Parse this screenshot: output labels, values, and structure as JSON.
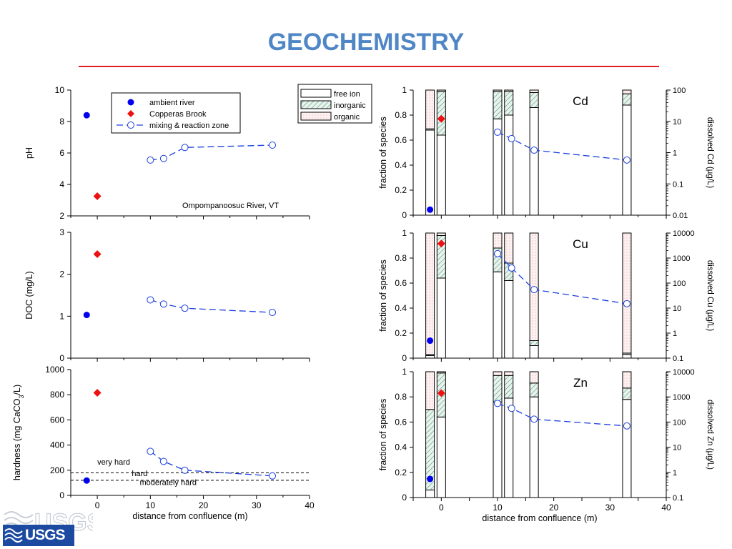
{
  "slide": {
    "title": "GEOCHEMISTRY",
    "accent_color": "#4f86c6",
    "rule_color": "#e02020",
    "logo_text": "USGS",
    "logo_color": "#1b4aa0"
  },
  "styles": {
    "ambient_color": "#0000ee",
    "brook_color": "#ee1111",
    "mixing_color": "#1a3fe0",
    "inorganic_color": "#3f8f6a",
    "organic_color": "#e58f8f"
  },
  "chart_data": [
    {
      "type": "scatter",
      "ylabel": "pH",
      "xlim": [
        -5,
        40
      ],
      "ylim": [
        2,
        10
      ],
      "yticks": [
        2,
        4,
        6,
        8,
        10
      ],
      "xticks": [
        0,
        10,
        20,
        30,
        40
      ],
      "annotation": "Ompompanoosuc River, VT",
      "legend": {
        "position": "top-center",
        "entries": [
          "ambient river",
          "Copperas Brook",
          "mixing & reaction zone"
        ]
      },
      "series": [
        {
          "name": "ambient river",
          "marker": "filled-circle",
          "x": [
            -2
          ],
          "y": [
            8.4
          ]
        },
        {
          "name": "Copperas Brook",
          "marker": "filled-diamond",
          "x": [
            0
          ],
          "y": [
            3.25
          ]
        },
        {
          "name": "mixing & reaction zone",
          "marker": "open-circle",
          "line": "dashed",
          "x": [
            10,
            12.5,
            16.5,
            33
          ],
          "y": [
            5.55,
            5.65,
            6.35,
            6.5
          ]
        }
      ]
    },
    {
      "type": "scatter",
      "ylabel": "DOC (mg/L)",
      "xlim": [
        -5,
        40
      ],
      "ylim": [
        0,
        3
      ],
      "yticks": [
        0,
        1,
        2,
        3
      ],
      "xticks": [
        0,
        10,
        20,
        30,
        40
      ],
      "series": [
        {
          "name": "ambient river",
          "marker": "filled-circle",
          "x": [
            -2
          ],
          "y": [
            1.03
          ]
        },
        {
          "name": "Copperas Brook",
          "marker": "filled-diamond",
          "x": [
            0
          ],
          "y": [
            2.48
          ]
        },
        {
          "name": "mixing & reaction zone",
          "marker": "open-circle",
          "line": "dashed",
          "x": [
            10,
            12.5,
            16.5,
            33
          ],
          "y": [
            1.39,
            1.29,
            1.19,
            1.09
          ]
        }
      ]
    },
    {
      "type": "scatter",
      "ylabel_parts": [
        "hardness (mg CaCO",
        "3",
        "/L)"
      ],
      "xlabel": "distance from confluence (m)",
      "xlim": [
        -5,
        40
      ],
      "ylim": [
        0,
        1000
      ],
      "yticks": [
        0,
        200,
        400,
        600,
        800,
        1000
      ],
      "xticks": [
        0,
        10,
        20,
        30,
        40
      ],
      "reference_lines": [
        {
          "y": 180,
          "style": "dashed"
        },
        {
          "y": 120,
          "style": "dashed"
        }
      ],
      "reference_labels": [
        {
          "text": "very hard",
          "x": 0,
          "y": 245
        },
        {
          "text": "hard",
          "x": 6.5,
          "y": 152
        },
        {
          "text": "moderately hard",
          "x": 8,
          "y": 83
        }
      ],
      "series": [
        {
          "name": "ambient river",
          "marker": "filled-circle",
          "x": [
            -2
          ],
          "y": [
            118
          ]
        },
        {
          "name": "Copperas Brook",
          "marker": "filled-diamond",
          "x": [
            0
          ],
          "y": [
            815
          ]
        },
        {
          "name": "mixing & reaction zone",
          "marker": "open-circle",
          "line": "dashed",
          "x": [
            10,
            12.5,
            16.5,
            33
          ],
          "y": [
            350,
            270,
            200,
            155
          ]
        }
      ]
    },
    {
      "type": "bar",
      "element": "Cd",
      "ylabel": "fraction of species",
      "ylabel_right": "dissolved Cd (µg/L)",
      "xlim": [
        -5,
        40
      ],
      "ylim": [
        0,
        1
      ],
      "yticks": [
        0,
        0.2,
        0.4,
        0.6,
        0.8,
        1
      ],
      "xticks": [
        0,
        10,
        20,
        30,
        40
      ],
      "ylim_right": [
        0.01,
        100
      ],
      "yticks_right": [
        0.01,
        0.1,
        1,
        10,
        100
      ],
      "yticklabels_right": [
        "0.01",
        "0.1",
        "1",
        "10",
        "100"
      ],
      "legend": {
        "position": "top-right-outside",
        "entries": [
          "free ion",
          "inorganic",
          "organic"
        ]
      },
      "bars": [
        {
          "x": -2,
          "free_ion": 0.68,
          "inorganic": 0.01,
          "organic": 0.31
        },
        {
          "x": 0,
          "free_ion": 0.64,
          "inorganic": 0.35,
          "organic": 0.01
        },
        {
          "x": 10,
          "free_ion": 0.77,
          "inorganic": 0.22,
          "organic": 0.01
        },
        {
          "x": 12,
          "free_ion": 0.8,
          "inorganic": 0.19,
          "organic": 0.01
        },
        {
          "x": 16.5,
          "free_ion": 0.86,
          "inorganic": 0.12,
          "organic": 0.02
        },
        {
          "x": 33,
          "free_ion": 0.88,
          "inorganic": 0.09,
          "organic": 0.03
        }
      ],
      "series": [
        {
          "name": "ambient river",
          "marker": "filled-circle",
          "x": [
            -2
          ],
          "y": [
            0.015
          ]
        },
        {
          "name": "Copperas Brook",
          "marker": "filled-diamond",
          "x": [
            0
          ],
          "y": [
            12
          ]
        },
        {
          "name": "mixing & reaction zone",
          "marker": "open-circle",
          "line": "dashed",
          "x": [
            10,
            12.5,
            16.5,
            33
          ],
          "y": [
            4.5,
            2.8,
            1.2,
            0.58
          ]
        }
      ]
    },
    {
      "type": "bar",
      "element": "Cu",
      "ylabel": "fraction of species",
      "ylabel_right": "dissolved Cu (µg/L)",
      "xlim": [
        -5,
        40
      ],
      "ylim": [
        0,
        1
      ],
      "yticks": [
        0,
        0.2,
        0.4,
        0.6,
        0.8,
        1
      ],
      "xticks": [
        0,
        10,
        20,
        30,
        40
      ],
      "ylim_right": [
        0.1,
        10000
      ],
      "yticks_right": [
        0.1,
        1,
        10,
        100,
        1000,
        10000
      ],
      "yticklabels_right": [
        "0.1",
        "1",
        "10",
        "100",
        "1000",
        "10000"
      ],
      "bars": [
        {
          "x": -2,
          "free_ion": 0.02,
          "inorganic": 0.01,
          "organic": 0.97
        },
        {
          "x": 0,
          "free_ion": 0.64,
          "inorganic": 0.34,
          "organic": 0.02
        },
        {
          "x": 10,
          "free_ion": 0.69,
          "inorganic": 0.19,
          "organic": 0.12
        },
        {
          "x": 12,
          "free_ion": 0.62,
          "inorganic": 0.14,
          "organic": 0.24
        },
        {
          "x": 16.5,
          "free_ion": 0.1,
          "inorganic": 0.04,
          "organic": 0.86
        },
        {
          "x": 33,
          "free_ion": 0.03,
          "inorganic": 0.01,
          "organic": 0.96
        }
      ],
      "series": [
        {
          "name": "ambient river",
          "marker": "filled-circle",
          "x": [
            -2
          ],
          "y": [
            0.5
          ]
        },
        {
          "name": "Copperas Brook",
          "marker": "filled-diamond",
          "x": [
            0
          ],
          "y": [
            3800
          ]
        },
        {
          "name": "mixing & reaction zone",
          "marker": "open-circle",
          "line": "dashed",
          "x": [
            10,
            12.5,
            16.5,
            33
          ],
          "y": [
            1500,
            400,
            55,
            15
          ]
        }
      ]
    },
    {
      "type": "bar",
      "element": "Zn",
      "ylabel": "fraction of species",
      "ylabel_right": "dissolved Zn (µg/L)",
      "xlabel": "distance from confluence (m)",
      "xlim": [
        -5,
        40
      ],
      "ylim": [
        0,
        1
      ],
      "yticks": [
        0,
        0.2,
        0.4,
        0.6,
        0.8,
        1
      ],
      "xticks": [
        -5,
        0,
        5,
        10,
        15,
        20,
        25,
        30,
        35,
        40
      ],
      "xticklabels": [
        "",
        "0",
        "",
        "10",
        "",
        "20",
        "",
        "30",
        "",
        "40"
      ],
      "ylim_right": [
        0.1,
        10000
      ],
      "yticks_right": [
        0.1,
        1,
        10,
        100,
        1000,
        10000
      ],
      "yticklabels_right": [
        "0.1",
        "1",
        "10",
        "100",
        "1000",
        "10000"
      ],
      "bars": [
        {
          "x": -2,
          "free_ion": 0.06,
          "inorganic": 0.64,
          "organic": 0.3
        },
        {
          "x": 0,
          "free_ion": 0.64,
          "inorganic": 0.35,
          "organic": 0.01
        },
        {
          "x": 10,
          "free_ion": 0.76,
          "inorganic": 0.21,
          "organic": 0.03
        },
        {
          "x": 12,
          "free_ion": 0.79,
          "inorganic": 0.18,
          "organic": 0.03
        },
        {
          "x": 16.5,
          "free_ion": 0.8,
          "inorganic": 0.11,
          "organic": 0.09
        },
        {
          "x": 33,
          "free_ion": 0.78,
          "inorganic": 0.09,
          "organic": 0.13
        }
      ],
      "series": [
        {
          "name": "ambient river",
          "marker": "filled-circle",
          "x": [
            -2
          ],
          "y": [
            0.55
          ]
        },
        {
          "name": "Copperas Brook",
          "marker": "filled-diamond",
          "x": [
            0
          ],
          "y": [
            1400
          ]
        },
        {
          "name": "mixing & reaction zone",
          "marker": "open-circle",
          "line": "dashed",
          "x": [
            10,
            12.5,
            16.5,
            33
          ],
          "y": [
            550,
            350,
            130,
            70
          ]
        }
      ]
    }
  ]
}
